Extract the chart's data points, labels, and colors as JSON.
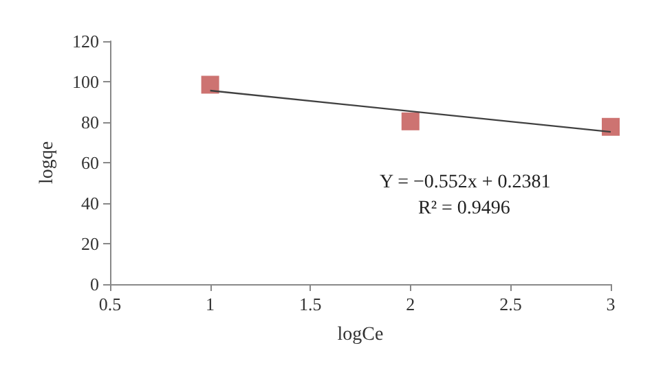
{
  "chart_data": {
    "type": "scatter",
    "xlabel": "logCe",
    "ylabel": "logqe",
    "series": [
      {
        "color": "#c0504d",
        "marker": "square",
        "x": [
          1,
          2,
          3
        ],
        "values": [
          98.5,
          80.4,
          77.7
        ]
      },
      {
        "type": "line",
        "color": "#404040",
        "marker": "none",
        "x": [
          1,
          3
        ],
        "values": [
          95.6,
          75.2
        ]
      }
    ],
    "xlim": [
      0.5,
      3
    ],
    "xticks": [
      0.5,
      1,
      1.5,
      2,
      2.5,
      3
    ],
    "ylim": [
      0,
      120
    ],
    "yticks": [
      0,
      20,
      40,
      60,
      80,
      100,
      120
    ],
    "grid": false,
    "annotations": [
      "Y = −0.552x + 0.2381",
      "R² = 0.9496"
    ]
  }
}
